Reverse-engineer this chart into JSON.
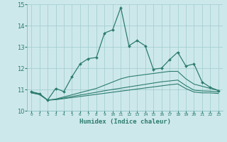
{
  "xlabel": "Humidex (Indice chaleur)",
  "background_color": "#cde8eb",
  "line_color": "#2d7d6e",
  "x": [
    0,
    1,
    2,
    3,
    4,
    5,
    6,
    7,
    8,
    9,
    10,
    11,
    12,
    13,
    14,
    15,
    16,
    17,
    18,
    19,
    20,
    21,
    22,
    23
  ],
  "y_main": [
    10.9,
    10.8,
    10.5,
    11.05,
    10.9,
    11.6,
    12.2,
    12.45,
    12.5,
    13.65,
    13.8,
    14.85,
    13.05,
    13.3,
    13.05,
    11.95,
    12.0,
    12.4,
    12.75,
    12.1,
    12.2,
    11.35,
    11.1,
    10.95
  ],
  "y_smooth1": [
    10.85,
    10.8,
    10.5,
    10.55,
    10.65,
    10.75,
    10.85,
    10.95,
    11.05,
    11.2,
    11.35,
    11.5,
    11.6,
    11.65,
    11.7,
    11.75,
    11.8,
    11.85,
    11.85,
    11.5,
    11.25,
    11.15,
    11.05,
    10.95
  ],
  "y_smooth2": [
    10.85,
    10.77,
    10.5,
    10.53,
    10.6,
    10.67,
    10.74,
    10.8,
    10.87,
    10.94,
    11.0,
    11.06,
    11.12,
    11.18,
    11.24,
    11.3,
    11.36,
    11.4,
    11.44,
    11.18,
    10.97,
    10.93,
    10.92,
    10.88
  ],
  "y_smooth3": [
    10.84,
    10.76,
    10.5,
    10.52,
    10.57,
    10.62,
    10.67,
    10.72,
    10.77,
    10.82,
    10.87,
    10.92,
    10.97,
    11.02,
    11.07,
    11.12,
    11.17,
    11.22,
    11.26,
    11.04,
    10.88,
    10.84,
    10.84,
    10.81
  ],
  "ylim": [
    10.0,
    15.0
  ],
  "yticks": [
    10,
    11,
    12,
    13,
    14,
    15
  ],
  "xlim_min": -0.5,
  "xlim_max": 23.5
}
